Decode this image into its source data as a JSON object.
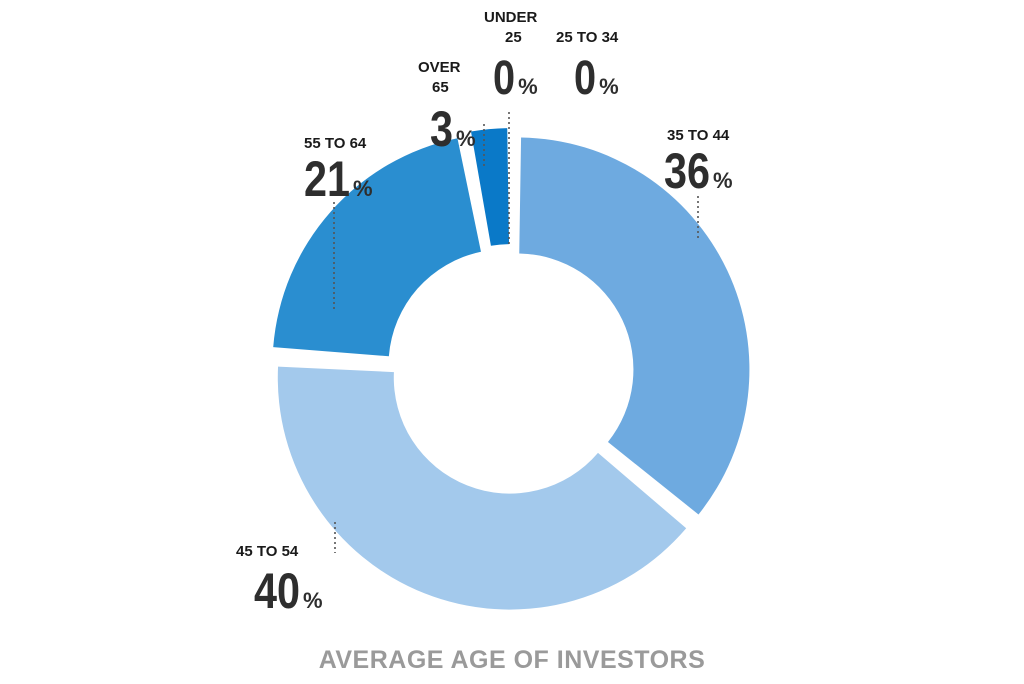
{
  "chart_data": {
    "type": "pie",
    "title": "AVERAGE AGE OF INVESTORS",
    "categories": [
      "UNDER 25",
      "25 TO 34",
      "35 TO 44",
      "45 TO 54",
      "55 TO 64",
      "OVER 65"
    ],
    "values": [
      0,
      0,
      36,
      40,
      21,
      3
    ],
    "value_labels": [
      "0",
      "0",
      "36",
      "40",
      "21",
      "3"
    ],
    "unit": "%",
    "colors": [
      "#5b9fd8",
      "#5b9fd8",
      "#6eaae0",
      "#a3c9ec",
      "#2a8ed0",
      "#0a79c8"
    ],
    "style": "donut-exploded"
  }
}
